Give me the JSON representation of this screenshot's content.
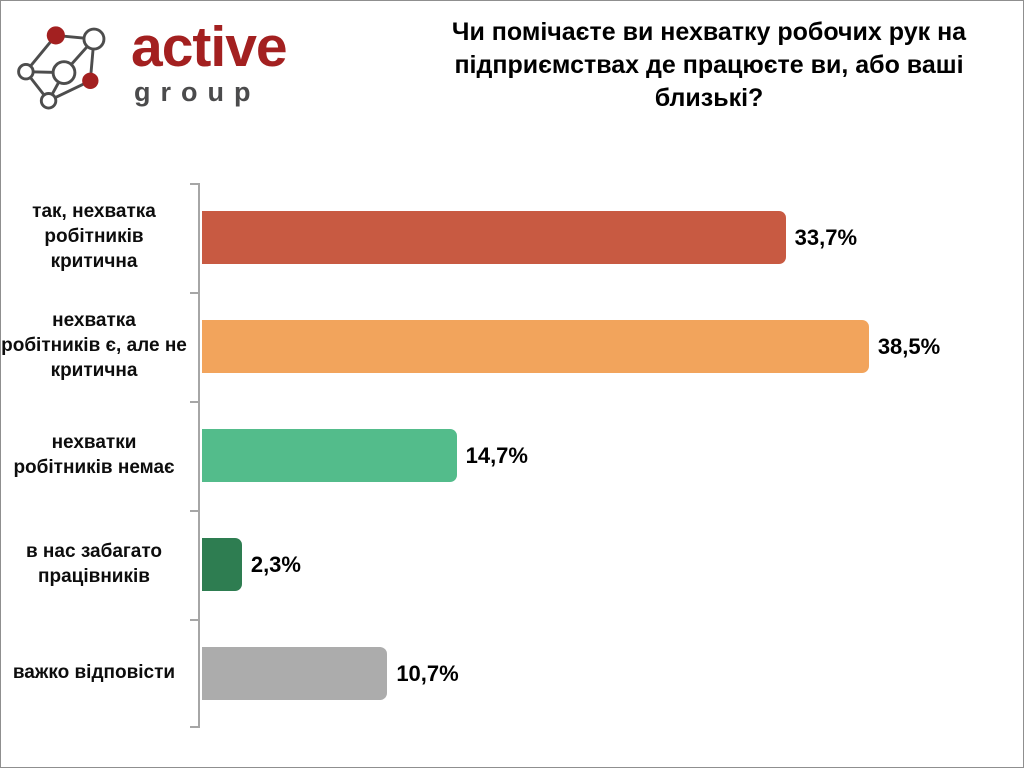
{
  "logo": {
    "primary": "active",
    "secondary": "group",
    "primary_color": "#A32020",
    "secondary_color": "#4B4B4C",
    "icon_line_color": "#4D4D4D",
    "icon_node_color": "#A32020"
  },
  "chart_data": {
    "type": "bar",
    "orientation": "horizontal",
    "title": "Чи помічаєте ви нехватку робочих рук на підприємствах де працюєте ви, або ваші близькі?",
    "categories": [
      "так, нехватка робітників критична",
      "нехватка робітників є, але не критична",
      "нехватки робітників немає",
      "в нас забагато працівників",
      "важко відповісти"
    ],
    "values": [
      33.7,
      38.5,
      14.7,
      2.3,
      10.7
    ],
    "value_labels": [
      "33,7%",
      "38,5%",
      "14,7%",
      "2,3%",
      "10,7%"
    ],
    "bar_colors": [
      "#C85A42",
      "#F2A45C",
      "#53BC8B",
      "#2E7D51",
      "#ACACAC"
    ],
    "xlabel": "",
    "ylabel": "",
    "xlim": [
      0,
      47
    ],
    "grid": false,
    "legend": false,
    "axis_color": "#A6A6A6"
  }
}
